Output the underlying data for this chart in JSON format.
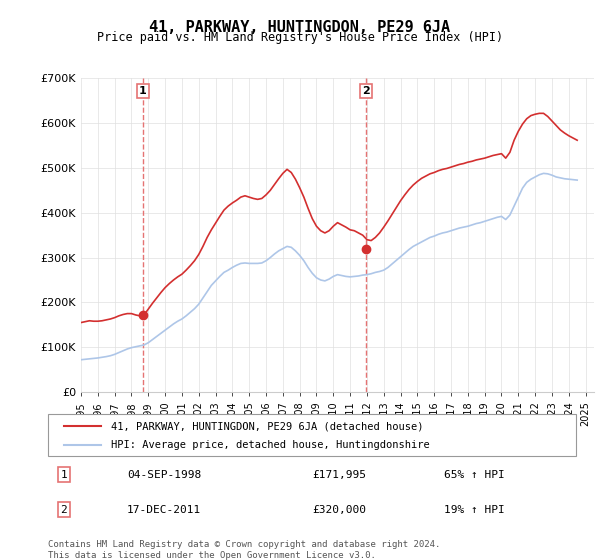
{
  "title": "41, PARKWAY, HUNTINGDON, PE29 6JA",
  "subtitle": "Price paid vs. HM Land Registry's House Price Index (HPI)",
  "legend_line1": "41, PARKWAY, HUNTINGDON, PE29 6JA (detached house)",
  "legend_line2": "HPI: Average price, detached house, Huntingdonshire",
  "sale1_label": "1",
  "sale1_date": "04-SEP-1998",
  "sale1_price": "£171,995",
  "sale1_hpi": "65% ↑ HPI",
  "sale1_x": 1998.67,
  "sale1_y": 171995,
  "sale2_label": "2",
  "sale2_date": "17-DEC-2011",
  "sale2_price": "£320,000",
  "sale2_hpi": "19% ↑ HPI",
  "sale2_x": 2011.96,
  "sale2_y": 320000,
  "vline1_x": 1998.67,
  "vline2_x": 2011.96,
  "xmin": 1995.0,
  "xmax": 2025.5,
  "ymin": 0,
  "ymax": 700000,
  "yticks": [
    0,
    100000,
    200000,
    300000,
    400000,
    500000,
    600000,
    700000
  ],
  "ytick_labels": [
    "£0",
    "£100K",
    "£200K",
    "£300K",
    "£400K",
    "£500K",
    "£600K",
    "£700K"
  ],
  "hpi_color": "#aec6e8",
  "price_color": "#d32f2f",
  "vline_color": "#e57373",
  "background_color": "#ffffff",
  "grid_color": "#e0e0e0",
  "footnote": "Contains HM Land Registry data © Crown copyright and database right 2024.\nThis data is licensed under the Open Government Licence v3.0.",
  "hpi_data_x": [
    1995.0,
    1995.25,
    1995.5,
    1995.75,
    1996.0,
    1996.25,
    1996.5,
    1996.75,
    1997.0,
    1997.25,
    1997.5,
    1997.75,
    1998.0,
    1998.25,
    1998.5,
    1998.75,
    1999.0,
    1999.25,
    1999.5,
    1999.75,
    2000.0,
    2000.25,
    2000.5,
    2000.75,
    2001.0,
    2001.25,
    2001.5,
    2001.75,
    2002.0,
    2002.25,
    2002.5,
    2002.75,
    2003.0,
    2003.25,
    2003.5,
    2003.75,
    2004.0,
    2004.25,
    2004.5,
    2004.75,
    2005.0,
    2005.25,
    2005.5,
    2005.75,
    2006.0,
    2006.25,
    2006.5,
    2006.75,
    2007.0,
    2007.25,
    2007.5,
    2007.75,
    2008.0,
    2008.25,
    2008.5,
    2008.75,
    2009.0,
    2009.25,
    2009.5,
    2009.75,
    2010.0,
    2010.25,
    2010.5,
    2010.75,
    2011.0,
    2011.25,
    2011.5,
    2011.75,
    2012.0,
    2012.25,
    2012.5,
    2012.75,
    2013.0,
    2013.25,
    2013.5,
    2013.75,
    2014.0,
    2014.25,
    2014.5,
    2014.75,
    2015.0,
    2015.25,
    2015.5,
    2015.75,
    2016.0,
    2016.25,
    2016.5,
    2016.75,
    2017.0,
    2017.25,
    2017.5,
    2017.75,
    2018.0,
    2018.25,
    2018.5,
    2018.75,
    2019.0,
    2019.25,
    2019.5,
    2019.75,
    2020.0,
    2020.25,
    2020.5,
    2020.75,
    2021.0,
    2021.25,
    2021.5,
    2021.75,
    2022.0,
    2022.25,
    2022.5,
    2022.75,
    2023.0,
    2023.25,
    2023.5,
    2023.75,
    2024.0,
    2024.25,
    2024.5
  ],
  "hpi_data_y": [
    72000,
    73000,
    74000,
    75000,
    76000,
    77500,
    79000,
    81000,
    84000,
    88000,
    92000,
    96000,
    99000,
    101000,
    103000,
    105000,
    110000,
    117000,
    124000,
    131000,
    138000,
    145000,
    152000,
    158000,
    163000,
    170000,
    178000,
    186000,
    196000,
    210000,
    224000,
    238000,
    248000,
    258000,
    267000,
    272000,
    278000,
    283000,
    287000,
    288000,
    287000,
    287000,
    287000,
    288000,
    293000,
    300000,
    308000,
    315000,
    320000,
    325000,
    323000,
    315000,
    305000,
    293000,
    278000,
    265000,
    255000,
    250000,
    248000,
    252000,
    258000,
    262000,
    260000,
    258000,
    257000,
    258000,
    259000,
    261000,
    262000,
    264000,
    267000,
    269000,
    272000,
    278000,
    286000,
    294000,
    302000,
    310000,
    318000,
    325000,
    330000,
    335000,
    340000,
    345000,
    348000,
    352000,
    355000,
    357000,
    360000,
    363000,
    366000,
    368000,
    370000,
    373000,
    376000,
    378000,
    381000,
    384000,
    387000,
    390000,
    392000,
    385000,
    395000,
    415000,
    435000,
    455000,
    468000,
    475000,
    480000,
    485000,
    488000,
    487000,
    484000,
    480000,
    478000,
    476000,
    475000,
    474000,
    473000
  ],
  "price_data_x": [
    1995.0,
    1995.25,
    1995.5,
    1995.75,
    1996.0,
    1996.25,
    1996.5,
    1996.75,
    1997.0,
    1997.25,
    1997.5,
    1997.75,
    1998.0,
    1998.25,
    1998.5,
    1998.75,
    1999.0,
    1999.25,
    1999.5,
    1999.75,
    2000.0,
    2000.25,
    2000.5,
    2000.75,
    2001.0,
    2001.25,
    2001.5,
    2001.75,
    2002.0,
    2002.25,
    2002.5,
    2002.75,
    2003.0,
    2003.25,
    2003.5,
    2003.75,
    2004.0,
    2004.25,
    2004.5,
    2004.75,
    2005.0,
    2005.25,
    2005.5,
    2005.75,
    2006.0,
    2006.25,
    2006.5,
    2006.75,
    2007.0,
    2007.25,
    2007.5,
    2007.75,
    2008.0,
    2008.25,
    2008.5,
    2008.75,
    2009.0,
    2009.25,
    2009.5,
    2009.75,
    2010.0,
    2010.25,
    2010.5,
    2010.75,
    2011.0,
    2011.25,
    2011.5,
    2011.75,
    2012.0,
    2012.25,
    2012.5,
    2012.75,
    2013.0,
    2013.25,
    2013.5,
    2013.75,
    2014.0,
    2014.25,
    2014.5,
    2014.75,
    2015.0,
    2015.25,
    2015.5,
    2015.75,
    2016.0,
    2016.25,
    2016.5,
    2016.75,
    2017.0,
    2017.25,
    2017.5,
    2017.75,
    2018.0,
    2018.25,
    2018.5,
    2018.75,
    2019.0,
    2019.25,
    2019.5,
    2019.75,
    2020.0,
    2020.25,
    2020.5,
    2020.75,
    2021.0,
    2021.25,
    2021.5,
    2021.75,
    2022.0,
    2022.25,
    2022.5,
    2022.75,
    2023.0,
    2023.25,
    2023.5,
    2023.75,
    2024.0,
    2024.25,
    2024.5
  ],
  "price_data_y": [
    155000,
    157000,
    159000,
    158000,
    158000,
    159000,
    161000,
    163000,
    166000,
    170000,
    173000,
    175000,
    175000,
    172000,
    170000,
    171995,
    185000,
    198000,
    210000,
    222000,
    233000,
    242000,
    250000,
    257000,
    263000,
    272000,
    282000,
    293000,
    307000,
    325000,
    345000,
    362000,
    377000,
    392000,
    406000,
    415000,
    422000,
    428000,
    435000,
    438000,
    435000,
    432000,
    430000,
    432000,
    440000,
    450000,
    463000,
    476000,
    488000,
    497000,
    490000,
    475000,
    456000,
    435000,
    410000,
    387000,
    370000,
    360000,
    355000,
    360000,
    370000,
    378000,
    373000,
    368000,
    362000,
    360000,
    355000,
    350000,
    340000,
    338000,
    345000,
    355000,
    368000,
    382000,
    397000,
    412000,
    427000,
    440000,
    452000,
    462000,
    470000,
    477000,
    482000,
    487000,
    490000,
    494000,
    497000,
    499000,
    502000,
    505000,
    508000,
    510000,
    513000,
    515000,
    518000,
    520000,
    522000,
    525000,
    528000,
    530000,
    532000,
    522000,
    535000,
    562000,
    582000,
    598000,
    610000,
    617000,
    620000,
    622000,
    622000,
    615000,
    605000,
    595000,
    585000,
    578000,
    572000,
    567000,
    562000
  ]
}
